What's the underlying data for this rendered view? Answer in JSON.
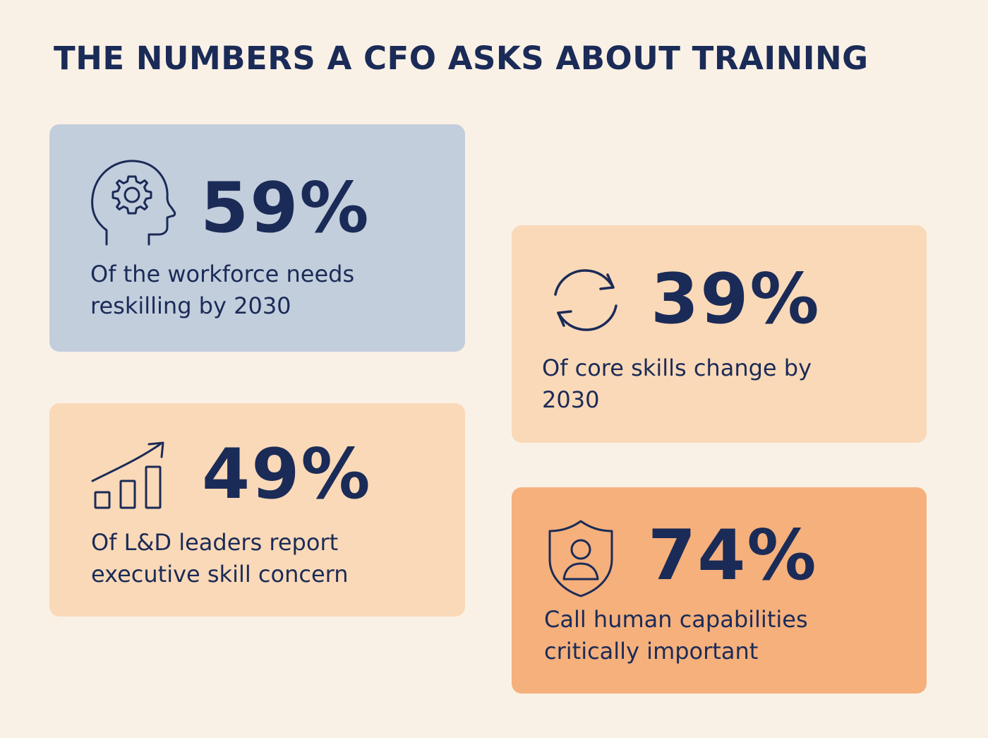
{
  "title": "THE NUMBERS A CFO ASKS ABOUT TRAINING",
  "colors": {
    "background": "#faf1e6",
    "text": "#1b2b57",
    "card_blue": "#c3cedd",
    "card_peach": "#fad9b8",
    "card_orange": "#f5b07c"
  },
  "cards": [
    {
      "icon": "head-gear-icon",
      "value": "59%",
      "description": "Of the workforce needs reskilling by 2030",
      "color": "#c3cedd"
    },
    {
      "icon": "refresh-cycle-icon",
      "value": "39%",
      "description": "Of core skills change by 2030",
      "color": "#fad9b8"
    },
    {
      "icon": "growth-chart-icon",
      "value": "49%",
      "description": "Of L&D leaders report executive skill concern",
      "color": "#fad9b8"
    },
    {
      "icon": "shield-person-icon",
      "value": "74%",
      "description": "Call human capabilities critically important",
      "color": "#f5b07c"
    }
  ]
}
